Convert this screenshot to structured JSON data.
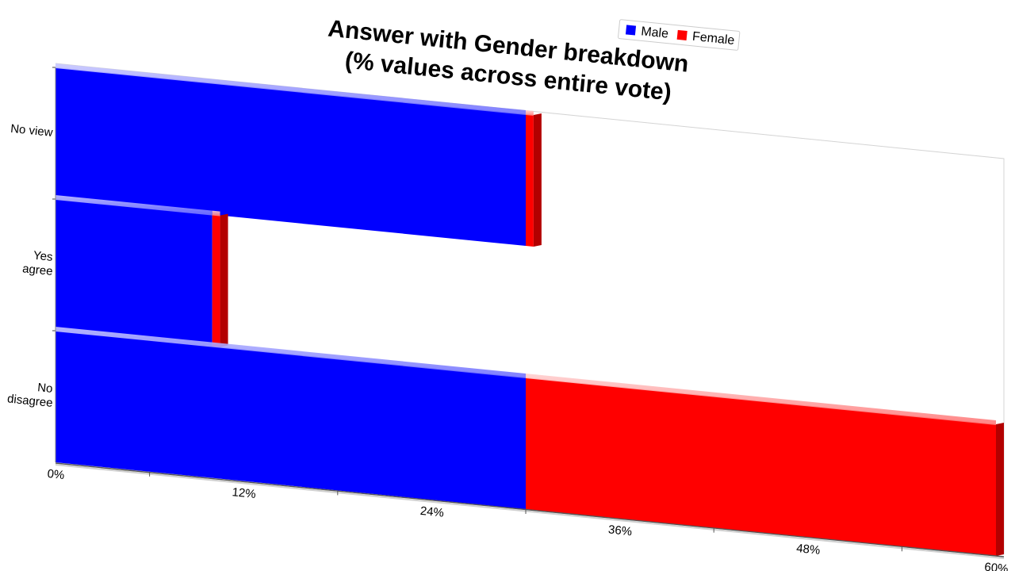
{
  "chart_data": {
    "type": "bar",
    "orientation": "horizontal",
    "stacked": true,
    "title": [
      "Answer with Gender breakdown",
      "(% values across entire vote)"
    ],
    "categories": [
      [
        "No view"
      ],
      [
        "Yes",
        "agree"
      ],
      [
        "No",
        "disagree"
      ]
    ],
    "series": [
      {
        "name": "Male",
        "color": "#0000ff",
        "values": [
          30,
          10,
          30
        ]
      },
      {
        "name": "Female",
        "color": "#ff0000",
        "values": [
          0.5,
          0.5,
          30
        ]
      }
    ],
    "xlim": [
      0,
      60
    ],
    "xticks": [
      {
        "value": 0,
        "label": "0%"
      },
      {
        "value": 12,
        "label": "12%"
      },
      {
        "value": 24,
        "label": "24%"
      },
      {
        "value": 36,
        "label": "36%"
      },
      {
        "value": 48,
        "label": "48%"
      },
      {
        "value": 60,
        "label": "60%"
      }
    ],
    "legend_position": "top-right",
    "grid": false
  }
}
